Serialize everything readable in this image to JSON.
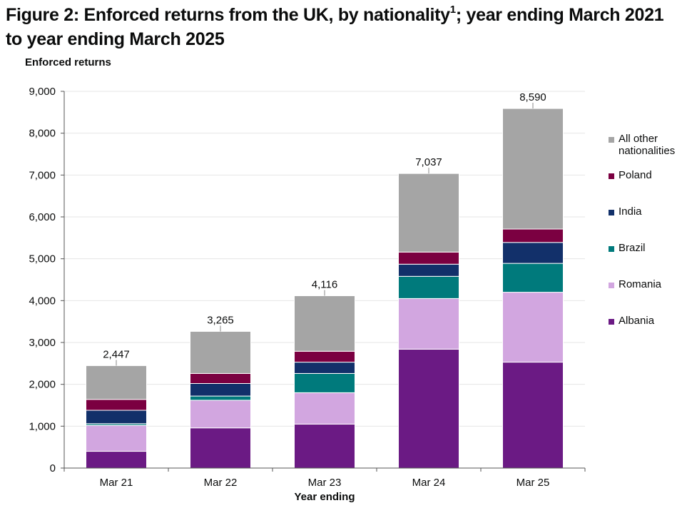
{
  "figure": {
    "title_main": "Figure 2: Enforced returns from the UK, by nationality",
    "title_sup": "1",
    "title_rest": "; year ending March 2021 to year ending March 2025"
  },
  "colors": {
    "All other nationalities": "#a5a5a5",
    "Poland": "#7b0041",
    "India": "#12306a",
    "Brazil": "#007a7c",
    "Romania": "#d2a6e0",
    "Albania": "#6b1a84"
  },
  "chart_data": {
    "type": "bar",
    "stacked": true,
    "title": "Figure 2: Enforced returns from the UK, by nationality1; year ending March 2021 to year ending March 2025",
    "ylabel": "Enforced returns",
    "xlabel": "Year ending",
    "categories": [
      "Mar 21",
      "Mar 22",
      "Mar 23",
      "Mar 24",
      "Mar 25"
    ],
    "ylim": [
      0,
      9000
    ],
    "yticks": [
      0,
      1000,
      2000,
      3000,
      4000,
      5000,
      6000,
      7000,
      8000,
      9000
    ],
    "ytick_labels": [
      "0",
      "1,000",
      "2,000",
      "3,000",
      "4,000",
      "5,000",
      "6,000",
      "7,000",
      "8,000",
      "9,000"
    ],
    "grid": true,
    "legend_position": "right",
    "series": [
      {
        "name": "Albania",
        "values": [
          400,
          960,
          1050,
          2840,
          2530
        ]
      },
      {
        "name": "Romania",
        "values": [
          620,
          660,
          750,
          1210,
          1670
        ]
      },
      {
        "name": "Brazil",
        "values": [
          40,
          100,
          460,
          530,
          690
        ]
      },
      {
        "name": "India",
        "values": [
          320,
          300,
          270,
          290,
          500
        ]
      },
      {
        "name": "Poland",
        "values": [
          260,
          240,
          260,
          290,
          320
        ]
      },
      {
        "name": "All other nationalities",
        "values": [
          807,
          1005,
          1326,
          1877,
          2880
        ]
      }
    ],
    "totals": [
      2447,
      3265,
      4116,
      7037,
      8590
    ],
    "total_labels": [
      "2,447",
      "3,265",
      "4,116",
      "7,037",
      "8,590"
    ]
  },
  "legend": {
    "items": [
      {
        "label_line1": "All other",
        "label_line2": "nationalities",
        "series": "All other nationalities"
      },
      {
        "label_line1": "Poland",
        "label_line2": "",
        "series": "Poland"
      },
      {
        "label_line1": "India",
        "label_line2": "",
        "series": "India"
      },
      {
        "label_line1": "Brazil",
        "label_line2": "",
        "series": "Brazil"
      },
      {
        "label_line1": "Romania",
        "label_line2": "",
        "series": "Romania"
      },
      {
        "label_line1": "Albania",
        "label_line2": "",
        "series": "Albania"
      }
    ]
  }
}
